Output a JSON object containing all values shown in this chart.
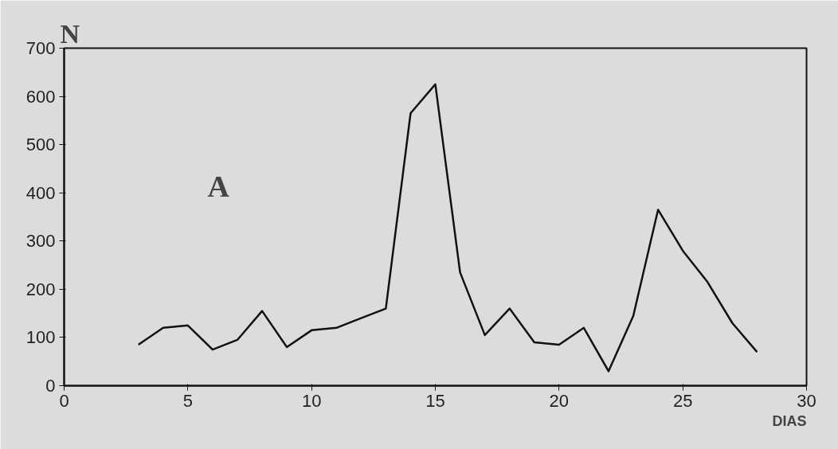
{
  "chart_data": {
    "type": "line",
    "ylabel": "N",
    "xlabel": "DIAS",
    "annotations": [
      "A"
    ],
    "x": [
      3,
      4,
      5,
      6,
      7,
      8,
      9,
      10,
      11,
      12,
      13,
      14,
      15,
      16,
      17,
      18,
      19,
      20,
      21,
      22,
      23,
      24,
      25,
      26,
      27,
      28
    ],
    "series": [
      {
        "color": "#111111",
        "values": [
          85,
          120,
          125,
          75,
          95,
          155,
          80,
          115,
          120,
          140,
          160,
          565,
          625,
          235,
          105,
          160,
          90,
          85,
          120,
          30,
          145,
          365,
          280,
          215,
          130,
          70
        ]
      }
    ],
    "xlim": [
      0,
      30
    ],
    "ylim": [
      0,
      700
    ],
    "xticks": [
      0,
      5,
      10,
      15,
      20,
      25,
      30
    ],
    "yticks": [
      0,
      100,
      200,
      300,
      400,
      500,
      600,
      700
    ],
    "grid": false,
    "marker": "none",
    "line_style": "solid"
  }
}
